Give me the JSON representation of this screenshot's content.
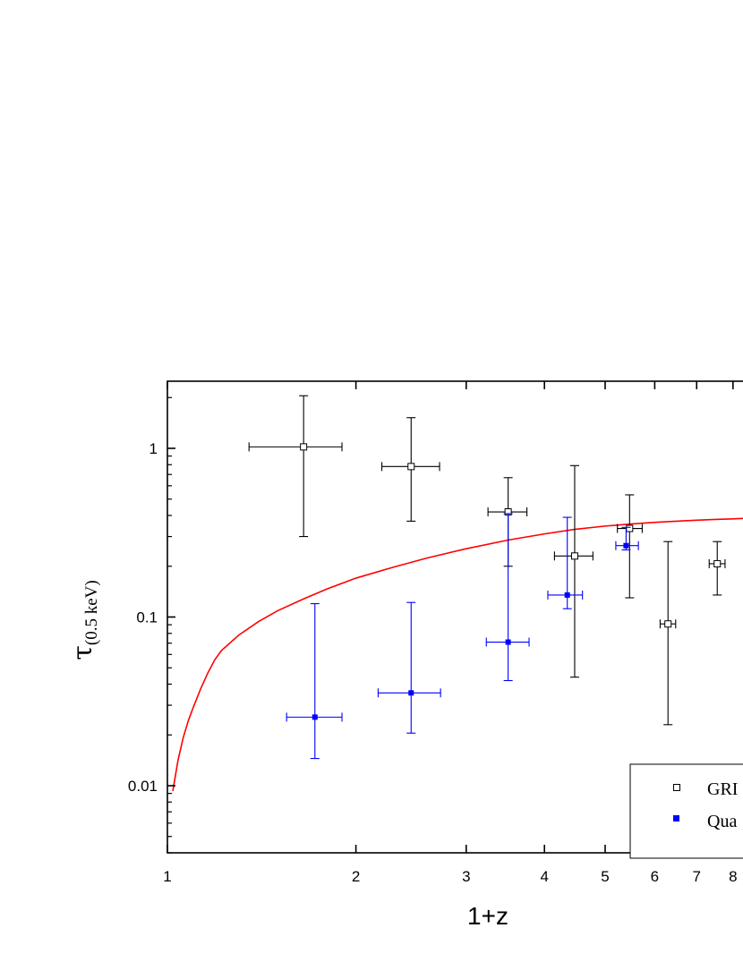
{
  "chart_data": {
    "type": "scatter",
    "xlabel": "1+z",
    "ylabel": {
      "symbol": "τ",
      "subscript": "(0.5 keV)"
    },
    "xscale": "log",
    "yscale": "log",
    "xlim": [
      1,
      8.3
    ],
    "ylim": [
      0.004,
      2.4
    ],
    "grid": false,
    "legend_position": "bottom-right",
    "x_ticks": [
      {
        "value": 1,
        "label": "1"
      },
      {
        "value": 2,
        "label": "2"
      },
      {
        "value": 3,
        "label": "3"
      },
      {
        "value": 4,
        "label": "4"
      },
      {
        "value": 5,
        "label": "5"
      },
      {
        "value": 6,
        "label": "6"
      },
      {
        "value": 7,
        "label": "7"
      },
      {
        "value": 8,
        "label": "8"
      }
    ],
    "y_ticks": [
      {
        "value": 0.01,
        "label": "0.01"
      },
      {
        "value": 0.1,
        "label": "0.1"
      },
      {
        "value": 1,
        "label": "1"
      }
    ],
    "series": [
      {
        "name": "GRI",
        "marker": "open-square",
        "color": "#000000",
        "points": [
          {
            "x": 1.65,
            "y": 1.02,
            "x_lo": 1.35,
            "x_hi": 1.9,
            "y_lo": 0.3,
            "y_hi": 2.05
          },
          {
            "x": 2.45,
            "y": 0.78,
            "x_lo": 2.2,
            "x_hi": 2.72,
            "y_lo": 0.37,
            "y_hi": 1.52
          },
          {
            "x": 3.5,
            "y": 0.42,
            "x_lo": 3.25,
            "x_hi": 3.75,
            "y_lo": 0.2,
            "y_hi": 0.67
          },
          {
            "x": 4.47,
            "y": 0.23,
            "x_lo": 4.15,
            "x_hi": 4.78,
            "y_lo": 0.044,
            "y_hi": 0.79
          },
          {
            "x": 5.47,
            "y": 0.335,
            "x_lo": 5.23,
            "x_hi": 5.73,
            "y_lo": 0.13,
            "y_hi": 0.53
          },
          {
            "x": 6.3,
            "y": 0.091,
            "x_lo": 6.12,
            "x_hi": 6.48,
            "y_lo": 0.023,
            "y_hi": 0.28
          },
          {
            "x": 7.55,
            "y": 0.207,
            "x_lo": 7.33,
            "x_hi": 7.77,
            "y_lo": 0.135,
            "y_hi": 0.28
          }
        ]
      },
      {
        "name": "Qua",
        "marker": "filled-square",
        "color": "#0000ff",
        "points": [
          {
            "x": 1.72,
            "y": 0.0255,
            "x_lo": 1.55,
            "x_hi": 1.9,
            "y_lo": 0.0145,
            "y_hi": 0.12
          },
          {
            "x": 2.45,
            "y": 0.0355,
            "x_lo": 2.17,
            "x_hi": 2.73,
            "y_lo": 0.0205,
            "y_hi": 0.122
          },
          {
            "x": 3.5,
            "y": 0.071,
            "x_lo": 3.23,
            "x_hi": 3.78,
            "y_lo": 0.042,
            "y_hi": 0.41
          },
          {
            "x": 4.35,
            "y": 0.135,
            "x_lo": 4.05,
            "x_hi": 4.6,
            "y_lo": 0.112,
            "y_hi": 0.39
          },
          {
            "x": 5.4,
            "y": 0.265,
            "x_lo": 5.2,
            "x_hi": 5.65,
            "y_lo": 0.25,
            "y_hi": 0.34
          }
        ]
      }
    ],
    "curve": {
      "color": "#ff0000",
      "points": [
        {
          "x": 1.02,
          "y": 0.0093
        },
        {
          "x": 1.04,
          "y": 0.0142
        },
        {
          "x": 1.06,
          "y": 0.0193
        },
        {
          "x": 1.08,
          "y": 0.0243
        },
        {
          "x": 1.1,
          "y": 0.0292
        },
        {
          "x": 1.13,
          "y": 0.0375
        },
        {
          "x": 1.16,
          "y": 0.0465
        },
        {
          "x": 1.19,
          "y": 0.0557
        },
        {
          "x": 1.22,
          "y": 0.0633
        },
        {
          "x": 1.3,
          "y": 0.0781
        },
        {
          "x": 1.4,
          "y": 0.0943
        },
        {
          "x": 1.5,
          "y": 0.109
        },
        {
          "x": 1.65,
          "y": 0.128
        },
        {
          "x": 1.8,
          "y": 0.147
        },
        {
          "x": 2.0,
          "y": 0.17
        },
        {
          "x": 2.3,
          "y": 0.198
        },
        {
          "x": 2.6,
          "y": 0.224
        },
        {
          "x": 3.0,
          "y": 0.254
        },
        {
          "x": 3.5,
          "y": 0.286
        },
        {
          "x": 4.0,
          "y": 0.311
        },
        {
          "x": 4.5,
          "y": 0.332
        },
        {
          "x": 5.0,
          "y": 0.346
        },
        {
          "x": 5.5,
          "y": 0.356
        },
        {
          "x": 6.0,
          "y": 0.364
        },
        {
          "x": 6.5,
          "y": 0.37
        },
        {
          "x": 7.0,
          "y": 0.375
        },
        {
          "x": 7.5,
          "y": 0.379
        },
        {
          "x": 8.0,
          "y": 0.382
        },
        {
          "x": 8.3,
          "y": 0.384
        }
      ]
    },
    "legend": [
      {
        "label": "GRI",
        "marker": "open-square",
        "color": "#000000"
      },
      {
        "label": "Qua",
        "marker": "filled-square",
        "color": "#0000ff"
      }
    ]
  }
}
